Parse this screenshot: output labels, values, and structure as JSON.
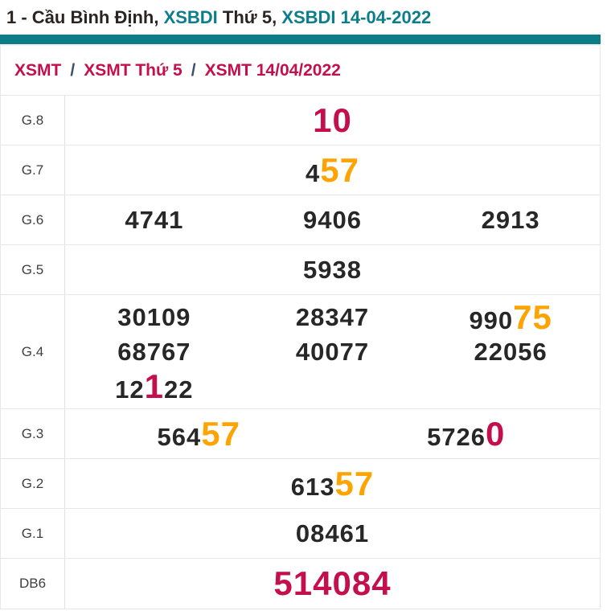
{
  "page_title": {
    "segments": [
      {
        "text": "1 - Cầu Bình Định, ",
        "style": "dark",
        "link": false
      },
      {
        "text": "XSBDI",
        "style": "teal",
        "link": true
      },
      {
        "text": " Thứ 5, ",
        "style": "dark",
        "link": false
      },
      {
        "text": "XSBDI 14-04-2022",
        "style": "teal",
        "link": true
      }
    ]
  },
  "breadcrumb": {
    "separator": "/",
    "items": [
      "XSMT",
      "XSMT Thứ 5",
      "XSMT 14/04/2022"
    ]
  },
  "colors": {
    "teal_bar": "#0b7e85",
    "teal_link": "#0c7e8a",
    "crimson": "#c30f4c",
    "orange": "#fda403",
    "digit_dark": "#272727",
    "breadcrumb_separator": "#3d4d6b",
    "table_border": "#e7e7e7"
  },
  "table": {
    "rows": [
      {
        "label": "G.8",
        "cols": 1,
        "lines": [
          [
            [
              {
                "t": "10",
                "c": "red"
              }
            ]
          ]
        ]
      },
      {
        "label": "G.7",
        "cols": 1,
        "lines": [
          [
            [
              {
                "t": "4"
              },
              {
                "t": "57",
                "c": "orange"
              }
            ]
          ]
        ]
      },
      {
        "label": "G.6",
        "cols": 3,
        "lines": [
          [
            [
              {
                "t": "4741"
              }
            ],
            [
              {
                "t": "9406"
              }
            ],
            [
              {
                "t": "2913"
              }
            ]
          ]
        ]
      },
      {
        "label": "G.5",
        "cols": 1,
        "lines": [
          [
            [
              {
                "t": "5938"
              }
            ]
          ]
        ]
      },
      {
        "label": "G.4",
        "cols": 3,
        "lines": [
          [
            [
              {
                "t": "30109"
              }
            ],
            [
              {
                "t": "28347"
              }
            ],
            [
              {
                "t": "990"
              },
              {
                "t": "75",
                "c": "orange"
              }
            ]
          ],
          [
            [
              {
                "t": "68767"
              }
            ],
            [
              {
                "t": "40077"
              }
            ],
            [
              {
                "t": "22056"
              }
            ]
          ],
          [
            [
              {
                "t": "12"
              },
              {
                "t": "1",
                "c": "red"
              },
              {
                "t": "22"
              }
            ]
          ]
        ]
      },
      {
        "label": "G.3",
        "cols": 2,
        "lines": [
          [
            [
              {
                "t": "564"
              },
              {
                "t": "57",
                "c": "orange"
              }
            ],
            [
              {
                "t": "5726"
              },
              {
                "t": "0",
                "c": "red"
              }
            ]
          ]
        ]
      },
      {
        "label": "G.2",
        "cols": 1,
        "lines": [
          [
            [
              {
                "t": "613"
              },
              {
                "t": "57",
                "c": "orange"
              }
            ]
          ]
        ]
      },
      {
        "label": "G.1",
        "cols": 1,
        "lines": [
          [
            [
              {
                "t": "08461"
              }
            ]
          ]
        ]
      },
      {
        "label": "DB6",
        "cols": 1,
        "lines": [
          [
            [
              {
                "t": "514084",
                "c": "red"
              }
            ]
          ]
        ]
      }
    ]
  }
}
